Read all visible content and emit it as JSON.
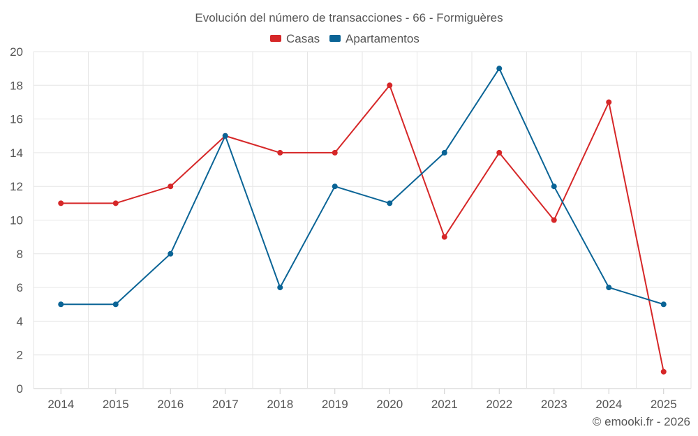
{
  "chart_data": {
    "type": "line",
    "title": "Evolución del número de transacciones - 66 - Formiguères",
    "xlabel": "",
    "ylabel": "",
    "x": [
      "2014",
      "2015",
      "2016",
      "2017",
      "2018",
      "2019",
      "2020",
      "2021",
      "2022",
      "2023",
      "2024",
      "2025"
    ],
    "ylim": [
      0,
      20
    ],
    "yticks": [
      "0",
      "2",
      "4",
      "6",
      "8",
      "10",
      "12",
      "14",
      "16",
      "18",
      "20"
    ],
    "grid": true,
    "legend_position": "top-center",
    "series": [
      {
        "name": "Casas",
        "color": "#d62728",
        "values": [
          11,
          11,
          12,
          15,
          14,
          14,
          18,
          9,
          14,
          10,
          17,
          1
        ]
      },
      {
        "name": "Apartamentos",
        "color": "#0a6496",
        "values": [
          5,
          5,
          8,
          15,
          6,
          12,
          11,
          14,
          19,
          12,
          6,
          5
        ]
      }
    ],
    "credit": "© emooki.fr - 2026"
  }
}
